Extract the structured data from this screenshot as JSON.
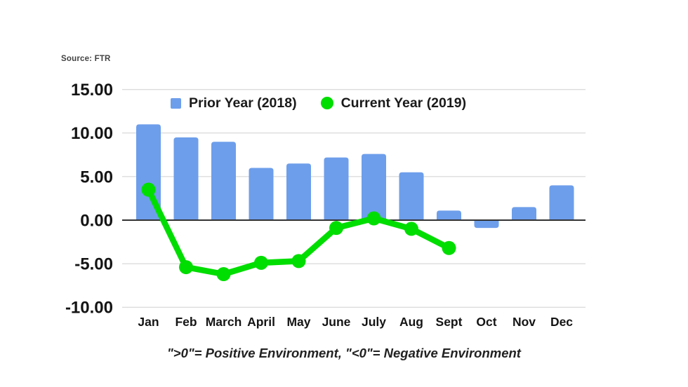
{
  "colors": {
    "bar": "#6d9eeb",
    "line": "#00dd00",
    "grid": "#cfcfcf",
    "zero_line": "#333333",
    "text": "#141414"
  },
  "chart_data": {
    "type": "combo-bar-line",
    "source": "Source: FTR",
    "caption": "\">0\"= Positive Environment, \"<0\"= Negative Environment",
    "categories": [
      "Jan",
      "Feb",
      "March",
      "April",
      "May",
      "June",
      "July",
      "Aug",
      "Sept",
      "Oct",
      "Nov",
      "Dec"
    ],
    "series": [
      {
        "name": "Prior Year (2018)",
        "type": "bar",
        "color": "#6d9eeb",
        "values": [
          11.0,
          9.5,
          9.0,
          6.0,
          6.5,
          7.2,
          7.6,
          5.5,
          1.1,
          -0.9,
          1.5,
          4.0
        ]
      },
      {
        "name": "Current Year (2019)",
        "type": "line",
        "color": "#00dd00",
        "values": [
          3.5,
          -5.4,
          -6.2,
          -4.9,
          -4.7,
          -0.9,
          0.2,
          -1.0,
          -3.2,
          null,
          null,
          null
        ]
      }
    ],
    "y_ticks": [
      {
        "value": 15,
        "label": "15.00"
      },
      {
        "value": 10,
        "label": "10.00"
      },
      {
        "value": 5,
        "label": "5.00"
      },
      {
        "value": 0,
        "label": "0.00"
      },
      {
        "value": -5,
        "label": "-5.00"
      },
      {
        "value": -10,
        "label": "-10.00"
      }
    ],
    "ylim": [
      -11.5,
      15.8
    ],
    "grid": true,
    "legend_position": "top-center",
    "title": "",
    "xlabel": "",
    "ylabel": ""
  }
}
